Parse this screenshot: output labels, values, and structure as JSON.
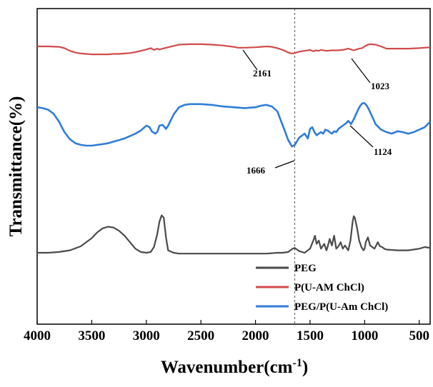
{
  "chart_data": {
    "type": "line",
    "xlabel": "Wavenumber(cm",
    "xlabel_sup": "-1",
    "xlabel_close": ")",
    "ylabel": "Transmittance(%)",
    "xlim": [
      4000,
      400
    ],
    "x_reversed": true,
    "xticks": [
      4000,
      3500,
      3000,
      2500,
      2000,
      1500,
      1000,
      500
    ],
    "y_ticks_shown": false,
    "grid": false,
    "legend_position": "bottom-right",
    "reference_line": {
      "x": 1640,
      "style": "dashed"
    },
    "series": [
      {
        "name": "PEG",
        "color": "#4a4a4a",
        "x": [
          4000,
          3900,
          3800,
          3700,
          3600,
          3500,
          3450,
          3400,
          3350,
          3300,
          3250,
          3200,
          3150,
          3100,
          3050,
          3000,
          2960,
          2930,
          2900,
          2880,
          2860,
          2840,
          2820,
          2800,
          2750,
          2700,
          2600,
          2500,
          2400,
          2300,
          2200,
          2100,
          2000,
          1900,
          1800,
          1750,
          1700,
          1660,
          1640,
          1600,
          1550,
          1500,
          1470,
          1455,
          1440,
          1420,
          1400,
          1370,
          1350,
          1340,
          1320,
          1300,
          1280,
          1260,
          1240,
          1220,
          1200,
          1180,
          1150,
          1130,
          1110,
          1100,
          1090,
          1070,
          1050,
          1030,
          1010,
          1000,
          990,
          970,
          950,
          930,
          910,
          890,
          880,
          860,
          840,
          820,
          800,
          700,
          600,
          500,
          450,
          400
        ],
        "y": [
          93,
          93,
          92,
          90,
          85,
          75,
          68,
          63,
          61,
          62,
          66,
          72,
          80,
          88,
          92,
          93,
          92,
          86,
          70,
          55,
          47,
          50,
          74,
          90,
          93,
          94,
          94,
          94,
          94,
          94,
          94,
          94,
          94,
          94,
          93,
          93,
          92,
          88,
          87,
          91,
          93,
          88,
          78,
          72,
          82,
          78,
          88,
          82,
          90,
          86,
          76,
          84,
          72,
          88,
          85,
          80,
          88,
          84,
          90,
          78,
          55,
          48,
          50,
          62,
          78,
          86,
          90,
          88,
          80,
          74,
          84,
          86,
          88,
          83,
          80,
          85,
          86,
          88,
          89,
          90,
          90,
          88,
          86,
          87
        ]
      },
      {
        "name": "P(U-AM ChCl)",
        "color": "#d24b4b",
        "x": [
          4000,
          3900,
          3800,
          3750,
          3700,
          3650,
          3600,
          3550,
          3500,
          3450,
          3400,
          3350,
          3300,
          3250,
          3200,
          3150,
          3100,
          3050,
          3000,
          2960,
          2930,
          2900,
          2880,
          2850,
          2800,
          2750,
          2700,
          2600,
          2500,
          2400,
          2300,
          2200,
          2161,
          2100,
          2000,
          1950,
          1900,
          1850,
          1800,
          1750,
          1700,
          1666,
          1640,
          1600,
          1550,
          1500,
          1470,
          1450,
          1420,
          1400,
          1350,
          1300,
          1250,
          1200,
          1150,
          1124,
          1100,
          1050,
          1023,
          1000,
          970,
          950,
          900,
          850,
          800,
          700,
          600,
          500,
          400
        ],
        "y": [
          8,
          8,
          9,
          12,
          18,
          22,
          24,
          25,
          26,
          26,
          26,
          26,
          25,
          25,
          24,
          23,
          21,
          18,
          15,
          12,
          16,
          13,
          15,
          13,
          10,
          7,
          4,
          3,
          3,
          4,
          6,
          9,
          11,
          11,
          10,
          9,
          8,
          9,
          12,
          16,
          22,
          24,
          23,
          20,
          18,
          16,
          19,
          17,
          18,
          16,
          18,
          17,
          17,
          16,
          13,
          15,
          17,
          13,
          12,
          8,
          4,
          3,
          4,
          8,
          13,
          13,
          13,
          12,
          10
        ]
      },
      {
        "name": "PEG/P(U-Am ChCl)",
        "color": "#2f7dd8",
        "x": [
          4000,
          3950,
          3900,
          3850,
          3800,
          3750,
          3700,
          3650,
          3600,
          3550,
          3500,
          3450,
          3400,
          3350,
          3300,
          3250,
          3200,
          3150,
          3100,
          3050,
          3000,
          2970,
          2950,
          2920,
          2900,
          2880,
          2850,
          2820,
          2800,
          2750,
          2700,
          2650,
          2600,
          2500,
          2400,
          2300,
          2200,
          2100,
          2000,
          1950,
          1900,
          1850,
          1800,
          1750,
          1700,
          1666,
          1640,
          1600,
          1550,
          1520,
          1500,
          1480,
          1460,
          1440,
          1420,
          1400,
          1380,
          1360,
          1340,
          1320,
          1300,
          1280,
          1260,
          1240,
          1220,
          1200,
          1170,
          1150,
          1124,
          1100,
          1080,
          1060,
          1040,
          1020,
          1000,
          980,
          960,
          940,
          920,
          900,
          850,
          800,
          750,
          700,
          650,
          600,
          550,
          500,
          450,
          400
        ],
        "y": [
          27,
          28,
          30,
          35,
          45,
          58,
          67,
          72,
          74,
          75,
          75,
          74,
          73,
          72,
          70,
          68,
          66,
          63,
          60,
          56,
          50,
          52,
          57,
          60,
          58,
          50,
          49,
          54,
          50,
          36,
          27,
          24,
          23,
          23,
          24,
          26,
          27,
          28,
          27,
          25,
          24,
          26,
          32,
          50,
          68,
          76,
          74,
          65,
          60,
          66,
          54,
          52,
          58,
          62,
          60,
          58,
          60,
          55,
          56,
          58,
          60,
          57,
          58,
          54,
          52,
          50,
          47,
          44,
          48,
          42,
          36,
          30,
          25,
          22,
          22,
          25,
          30,
          36,
          42,
          48,
          55,
          58,
          60,
          57,
          58,
          60,
          58,
          55,
          52,
          45
        ]
      }
    ],
    "annotations": [
      {
        "label": "2161",
        "x": 2161,
        "series": "P(U-AM ChCl)"
      },
      {
        "label": "1023",
        "x": 1023,
        "series": "P(U-AM ChCl)"
      },
      {
        "label": "1124",
        "x": 1124,
        "series": "PEG/P(U-Am ChCl)"
      },
      {
        "label": "1666",
        "x": 1666,
        "series": "PEG/P(U-Am ChCl)"
      }
    ]
  }
}
